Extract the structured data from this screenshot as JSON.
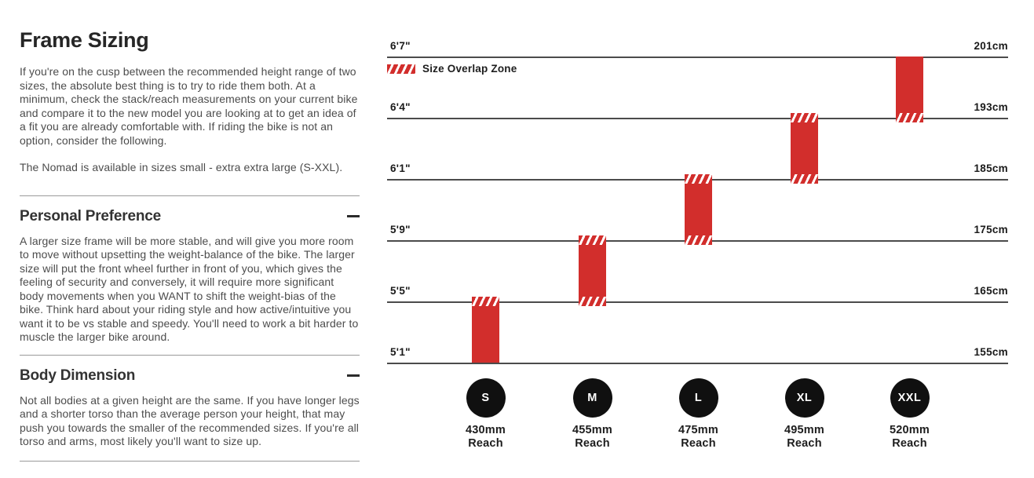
{
  "left_panel": {
    "title": "Frame Sizing",
    "intro": "If you're on the cusp between the recommended height range of two sizes, the absolute best thing is to try to ride them both. At a minimum, check the stack/reach measurements on your current bike and compare it to the new model you are looking at to get an idea of a fit you are already comfortable with. If riding the bike is not an option, consider the following.",
    "availability_note": "The Nomad is available in sizes small - extra extra large (S-XXL).",
    "sections": [
      {
        "heading": "Personal Preference",
        "collapse_state": "expanded",
        "body": "A larger size frame will be more stable, and will give you more room to move without upsetting the weight-balance of the bike. The larger size will put the front wheel further in front of you, which gives the feeling of security and conversely, it will require more significant body movements when you WANT to shift the weight-bias of the bike. Think hard about your riding style and how active/intuitive you want it to be vs stable and speedy. You'll need to work a bit harder to muscle the larger bike around."
      },
      {
        "heading": "Body Dimension",
        "collapse_state": "expanded",
        "body": "Not all bodies at a given height are the same. If you have longer legs and a shorter torso than the average person your height, that may push you towards the smaller of the recommended sizes. If you're all torso and arms, most likely you'll want to size up."
      }
    ]
  },
  "chart_data": {
    "type": "bar",
    "title": "",
    "legend": {
      "label": "Size Overlap Zone",
      "swatch": "red-hatch"
    },
    "axis_left_unit": "feet-inches",
    "axis_right_unit": "cm",
    "gridlines": [
      {
        "left_label": "6'7\"",
        "right_label": "201cm",
        "cm": 201
      },
      {
        "left_label": "6'4\"",
        "right_label": "193cm",
        "cm": 193
      },
      {
        "left_label": "6'1\"",
        "right_label": "185cm",
        "cm": 185
      },
      {
        "left_label": "5'9\"",
        "right_label": "175cm",
        "cm": 175
      },
      {
        "left_label": "5'5\"",
        "right_label": "165cm",
        "cm": 165
      },
      {
        "left_label": "5'1\"",
        "right_label": "155cm",
        "cm": 155
      }
    ],
    "sizes": [
      {
        "label": "S",
        "reach_value": "430mm",
        "reach_caption": "Reach",
        "height_range_cm": [
          155,
          165
        ],
        "height_range_ft": [
          "5'1\"",
          "5'5\""
        ],
        "overlap_top": true,
        "overlap_bottom": false
      },
      {
        "label": "M",
        "reach_value": "455mm",
        "reach_caption": "Reach",
        "height_range_cm": [
          165,
          175
        ],
        "height_range_ft": [
          "5'5\"",
          "5'9\""
        ],
        "overlap_top": true,
        "overlap_bottom": true
      },
      {
        "label": "L",
        "reach_value": "475mm",
        "reach_caption": "Reach",
        "height_range_cm": [
          175,
          185
        ],
        "height_range_ft": [
          "5'9\"",
          "6'1\""
        ],
        "overlap_top": true,
        "overlap_bottom": true
      },
      {
        "label": "XL",
        "reach_value": "495mm",
        "reach_caption": "Reach",
        "height_range_cm": [
          185,
          193
        ],
        "height_range_ft": [
          "6'1\"",
          "6'4\""
        ],
        "overlap_top": true,
        "overlap_bottom": true
      },
      {
        "label": "XXL",
        "reach_value": "520mm",
        "reach_caption": "Reach",
        "height_range_cm": [
          193,
          201
        ],
        "height_range_ft": [
          "6'4\"",
          "6'7\""
        ],
        "overlap_top": false,
        "overlap_bottom": true
      }
    ],
    "colors": {
      "bar_red": "#d22e2c",
      "circle_black": "#101010",
      "gridline": "#4b4b4b"
    }
  }
}
